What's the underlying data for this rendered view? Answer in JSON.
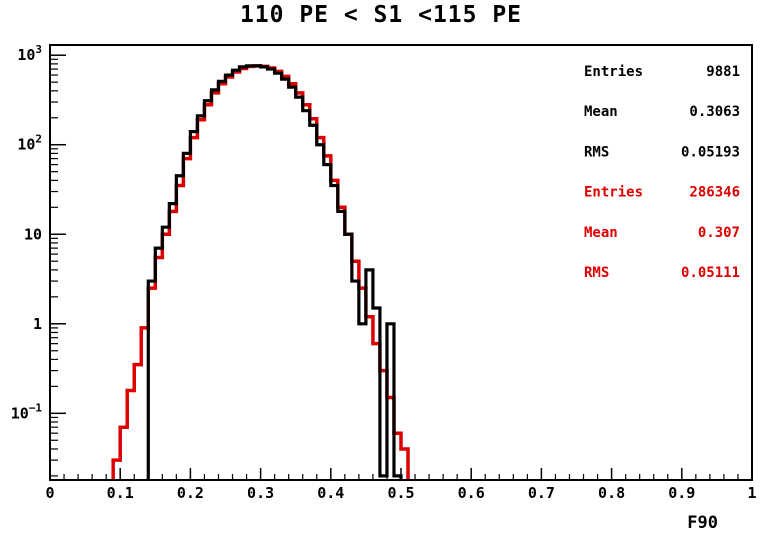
{
  "chart_data": {
    "type": "histogram",
    "title": "110 PE < S1 <115 PE",
    "xlabel": "F90",
    "ylabel": "",
    "xlim": [
      0,
      1
    ],
    "ylim": [
      0.018,
      1300
    ],
    "y_scale": "log",
    "x_ticks": [
      "0",
      "0.1",
      "0.2",
      "0.3",
      "0.4",
      "0.5",
      "0.6",
      "0.7",
      "0.8",
      "0.9",
      "1"
    ],
    "y_ticks": [
      {
        "value": 1000,
        "mantissa": "10",
        "exponent": "3"
      },
      {
        "value": 100,
        "mantissa": "10",
        "exponent": "2"
      },
      {
        "value": 10,
        "mantissa": "10",
        "exponent": ""
      },
      {
        "value": 1,
        "mantissa": "1",
        "exponent": ""
      },
      {
        "value": 0.1,
        "mantissa": "10",
        "exponent": "−1"
      }
    ],
    "bin_width": 0.01,
    "series": [
      {
        "name": "",
        "color": "#dd0000",
        "stats": [
          {
            "label": "Entries",
            "value": "286346"
          },
          {
            "label": "Mean",
            "value": "0.307"
          },
          {
            "label": "RMS",
            "value": "0.05111"
          }
        ],
        "bins": [
          [
            0.09,
            0.03
          ],
          [
            0.1,
            0.07
          ],
          [
            0.11,
            0.18
          ],
          [
            0.12,
            0.35
          ],
          [
            0.13,
            0.9
          ],
          [
            0.14,
            2.5
          ],
          [
            0.15,
            5.5
          ],
          [
            0.16,
            10
          ],
          [
            0.17,
            18
          ],
          [
            0.18,
            35
          ],
          [
            0.19,
            70
          ],
          [
            0.2,
            120
          ],
          [
            0.21,
            190
          ],
          [
            0.22,
            280
          ],
          [
            0.23,
            380
          ],
          [
            0.24,
            480
          ],
          [
            0.25,
            570
          ],
          [
            0.26,
            650
          ],
          [
            0.27,
            710
          ],
          [
            0.28,
            750
          ],
          [
            0.29,
            760
          ],
          [
            0.3,
            750
          ],
          [
            0.31,
            720
          ],
          [
            0.32,
            660
          ],
          [
            0.33,
            580
          ],
          [
            0.34,
            480
          ],
          [
            0.35,
            380
          ],
          [
            0.36,
            280
          ],
          [
            0.37,
            195
          ],
          [
            0.38,
            120
          ],
          [
            0.39,
            75
          ],
          [
            0.4,
            40
          ],
          [
            0.41,
            20
          ],
          [
            0.42,
            10
          ],
          [
            0.43,
            5
          ],
          [
            0.44,
            2.5
          ],
          [
            0.45,
            1.2
          ],
          [
            0.46,
            0.6
          ],
          [
            0.47,
            0.3
          ],
          [
            0.48,
            0.15
          ],
          [
            0.49,
            0.06
          ],
          [
            0.5,
            0.04
          ]
        ]
      },
      {
        "name": "",
        "color": "#000000",
        "stats": [
          {
            "label": "Entries",
            "value": "9881"
          },
          {
            "label": "Mean",
            "value": "0.3063"
          },
          {
            "label": "RMS",
            "value": "0.05193"
          }
        ],
        "bins": [
          [
            0.14,
            3
          ],
          [
            0.15,
            7
          ],
          [
            0.16,
            12
          ],
          [
            0.17,
            22
          ],
          [
            0.18,
            45
          ],
          [
            0.19,
            80
          ],
          [
            0.2,
            140
          ],
          [
            0.21,
            210
          ],
          [
            0.22,
            310
          ],
          [
            0.23,
            410
          ],
          [
            0.24,
            510
          ],
          [
            0.25,
            600
          ],
          [
            0.26,
            680
          ],
          [
            0.27,
            740
          ],
          [
            0.28,
            760
          ],
          [
            0.29,
            760
          ],
          [
            0.3,
            740
          ],
          [
            0.31,
            700
          ],
          [
            0.32,
            630
          ],
          [
            0.33,
            540
          ],
          [
            0.34,
            440
          ],
          [
            0.35,
            340
          ],
          [
            0.36,
            240
          ],
          [
            0.37,
            165
          ],
          [
            0.38,
            100
          ],
          [
            0.39,
            60
          ],
          [
            0.4,
            35
          ],
          [
            0.41,
            18
          ],
          [
            0.42,
            10
          ],
          [
            0.43,
            3
          ],
          [
            0.44,
            1
          ],
          [
            0.45,
            4
          ],
          [
            0.46,
            1.5
          ],
          [
            0.47,
            0.02
          ],
          [
            0.48,
            1
          ],
          [
            0.49,
            0.02
          ]
        ]
      }
    ],
    "stats_box": "top-right",
    "grid": false
  }
}
